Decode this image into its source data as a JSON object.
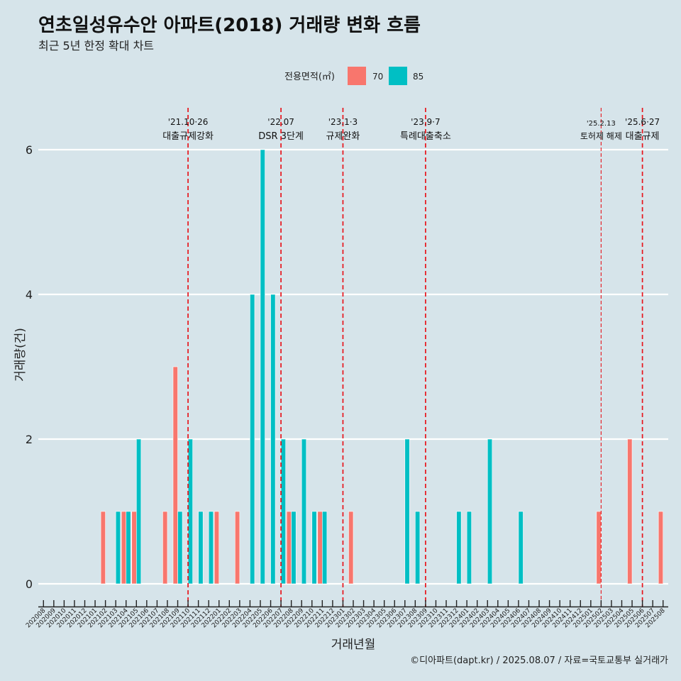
{
  "title": "연초일성유수안 아파트(2018) 거래량 변화 흐름",
  "subtitle": "최근 5년 한정 확대 차트",
  "caption": "©디아파트(dapt.kr) / 2025.08.07 / 자료=국토교통부 실거래가",
  "colors": {
    "background": "#d6e4ea",
    "series_70": "#f8766d",
    "series_85": "#00bfc4",
    "event_line": "#e8141b",
    "grid": "#ffffff"
  },
  "chart_data": {
    "type": "bar",
    "xlabel": "거래년월",
    "ylabel": "거래량(건)",
    "ylim": [
      0,
      6.3
    ],
    "yticks": [
      0,
      2,
      4,
      6
    ],
    "legend": {
      "title": "전용면적(㎡)",
      "position": "top"
    },
    "categories": [
      "202008",
      "202009",
      "202010",
      "202011",
      "202012",
      "202101",
      "202102",
      "202103",
      "202104",
      "202105",
      "202106",
      "202107",
      "202108",
      "202109",
      "202110",
      "202111",
      "202112",
      "202201",
      "202202",
      "202203",
      "202204",
      "202205",
      "202206",
      "202207",
      "202208",
      "202209",
      "202210",
      "202211",
      "202212",
      "202301",
      "202302",
      "202303",
      "202304",
      "202305",
      "202306",
      "202307",
      "202308",
      "202309",
      "202310",
      "202311",
      "202312",
      "202401",
      "202402",
      "202403",
      "202404",
      "202405",
      "202406",
      "202407",
      "202408",
      "202409",
      "202410",
      "202411",
      "202412",
      "202501",
      "202502",
      "202503",
      "202504",
      "202505",
      "202506",
      "202507",
      "202508"
    ],
    "series": [
      {
        "name": "70",
        "values": [
          0,
          0,
          0,
          0,
          0,
          0,
          1,
          0,
          1,
          1,
          0,
          0,
          1,
          3,
          0,
          0,
          0,
          1,
          0,
          1,
          0,
          0,
          0,
          0,
          1,
          0,
          0,
          1,
          0,
          0,
          1,
          0,
          0,
          0,
          0,
          0,
          0,
          0,
          0,
          0,
          0,
          0,
          0,
          0,
          0,
          0,
          0,
          0,
          0,
          0,
          0,
          0,
          0,
          0,
          1,
          0,
          0,
          2,
          0,
          0,
          1
        ]
      },
      {
        "name": "85",
        "values": [
          0,
          0,
          0,
          0,
          0,
          0,
          0,
          1,
          1,
          2,
          0,
          0,
          0,
          1,
          2,
          1,
          1,
          0,
          0,
          0,
          4,
          6,
          4,
          2,
          1,
          2,
          1,
          1,
          0,
          0,
          0,
          0,
          0,
          0,
          0,
          2,
          1,
          0,
          0,
          0,
          1,
          1,
          0,
          2,
          0,
          0,
          1,
          0,
          0,
          0,
          0,
          0,
          0,
          0,
          0,
          0,
          0,
          0,
          0,
          0,
          0
        ]
      }
    ],
    "events": [
      {
        "month": "202110",
        "date": "'21.10·26",
        "label": "대출규제강화",
        "style": "dashed"
      },
      {
        "month": "202207",
        "date": "'22.07",
        "label": "DSR 3단계",
        "style": "dashed"
      },
      {
        "month": "202301",
        "date": "'23.1·3",
        "label": "규제완화",
        "style": "dashed"
      },
      {
        "month": "202309",
        "date": "'23.9·7",
        "label": "특례대출축소",
        "style": "dashed"
      },
      {
        "month": "202502",
        "date": "'25.2.13",
        "label": "토허제 해제",
        "style": "thin"
      },
      {
        "month": "202506",
        "date": "'25.6·27",
        "label": "대출규제",
        "style": "dashed"
      }
    ]
  }
}
